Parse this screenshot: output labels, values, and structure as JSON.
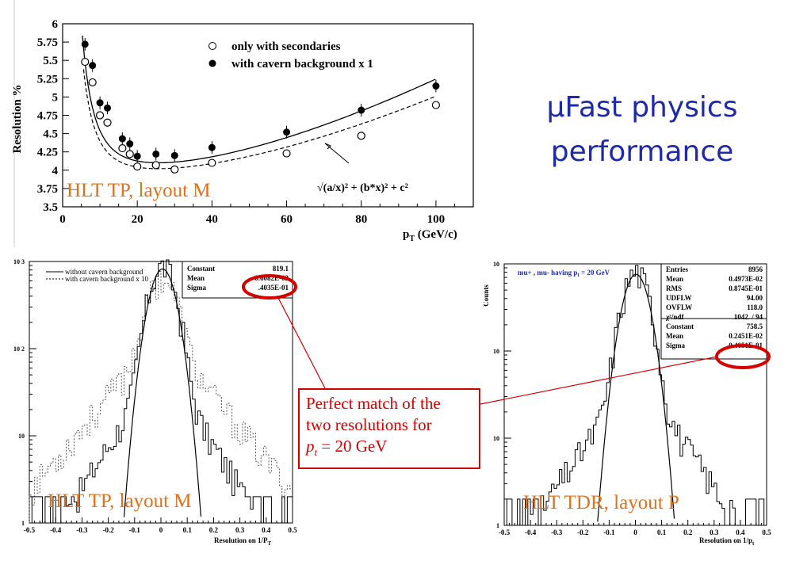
{
  "slide_title": {
    "line1": "μFast physics",
    "line2": "performance"
  },
  "callout": {
    "line1": "Perfect match of the",
    "line2": "two resolutions for",
    "pt_label": "p",
    "pt_sub": "t",
    "pt_value": " = 20 GeV"
  },
  "chart_data": [
    {
      "type": "scatter",
      "ylabel": "Resolution %",
      "xlabel": "p",
      "xlabel_sub": "T",
      "xlabel_unit": " (GeV/c)",
      "xlim": [
        0,
        110
      ],
      "ylim": [
        3.5,
        6
      ],
      "x_ticks": [
        "0",
        "20",
        "40",
        "60",
        "80",
        "100"
      ],
      "y_ticks": [
        "3.5",
        "3.75",
        "4",
        "4.25",
        "4.5",
        "4.75",
        "5",
        "5.25",
        "5.5",
        "5.75",
        "6"
      ],
      "legend_placement": "top-right",
      "overlay_label": "HLT TP, layout M",
      "formula_label": "√(a/x)² + (b*x)² + c²",
      "series": [
        {
          "name": "only with secondaries",
          "marker": "open-circle",
          "x": [
            6,
            8,
            10,
            12,
            16,
            18,
            20,
            25,
            30,
            40,
            60,
            80,
            100
          ],
          "y": [
            5.48,
            5.2,
            4.75,
            4.65,
            4.3,
            4.22,
            4.05,
            4.07,
            4.01,
            4.1,
            4.23,
            4.47,
            4.89
          ]
        },
        {
          "name": "with cavern background x 1",
          "marker": "filled-circle",
          "x": [
            6,
            8,
            10,
            12,
            16,
            18,
            20,
            25,
            30,
            40,
            60,
            80,
            100
          ],
          "y": [
            5.72,
            5.43,
            4.92,
            4.85,
            4.43,
            4.36,
            4.19,
            4.22,
            4.2,
            4.31,
            4.52,
            4.82,
            5.15
          ]
        }
      ]
    },
    {
      "type": "histogram",
      "xlabel": "Resolution on 1/P",
      "xlabel_sub": "T",
      "xlim": [
        -0.5,
        0.5
      ],
      "ylim": [
        1,
        1000
      ],
      "log_y": true,
      "x_ticks": [
        "-0.5",
        "-0.4",
        "-0.3",
        "-0.2",
        "-0.1",
        "0",
        "0.1",
        "0.2",
        "0.3",
        "0.4",
        "0.5"
      ],
      "y_ticks": [
        "1",
        "10",
        "10 2",
        "10 3"
      ],
      "legend": [
        "without cavern background",
        "with cavern background x 10"
      ],
      "stats": [
        [
          "Constant",
          "819.1"
        ],
        [
          "Mean",
          "0.6082E-02"
        ],
        [
          "Sigma",
          ".4035E-01"
        ]
      ],
      "overlay_label": "HLT TP, layout M",
      "fit": {
        "constant": 819.1,
        "mean": 0.006082,
        "sigma": 0.04035
      }
    },
    {
      "type": "histogram",
      "ylabel": "Counts",
      "xlabel": "Resolution on 1/p",
      "xlabel_sub": "t",
      "xlim": [
        -0.5,
        0.5
      ],
      "ylim": [
        1,
        1000
      ],
      "log_y": true,
      "x_ticks": [
        "-0.5",
        "-0.4",
        "-0.3",
        "-0.2",
        "-0.1",
        "0",
        "0.1",
        "0.2",
        "0.3",
        "0.4",
        "0.5"
      ],
      "y_ticks": [
        "1",
        "10",
        "10",
        "10"
      ],
      "in_plot_title": "mu+ , mu-  having p",
      "in_plot_title_sub": "t",
      "in_plot_title_rest": " = 20 GeV",
      "stats": [
        [
          "Entries",
          "8956"
        ],
        [
          "Mean",
          "0.4973E-02"
        ],
        [
          "RMS",
          "0.8745E-01"
        ],
        [
          "UDFLW",
          "94.00"
        ],
        [
          "OVFLW",
          "118.0"
        ],
        [
          "χ²/ndf",
          "1042.   /  94"
        ],
        [
          "Constant",
          "758.5"
        ],
        [
          "Mean",
          "0.2451E-02"
        ],
        [
          "Sigma",
          "0.4051E-01"
        ]
      ],
      "overlay_label": "HLT TDR, layout P",
      "fit": {
        "constant": 758.5,
        "mean": 0.002451,
        "sigma": 0.04051
      }
    }
  ]
}
